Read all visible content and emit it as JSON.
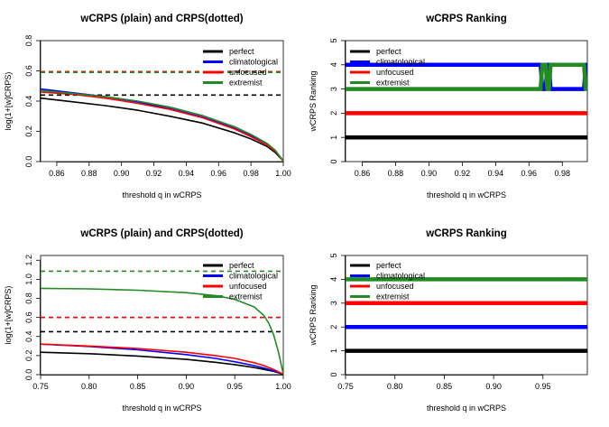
{
  "chart_data": [
    {
      "type": "line",
      "title": "wCRPS (plain) and CRPS(dotted)",
      "xlabel": "threshold q in wCRPS",
      "ylabel": "log(1+[w]CRPS)",
      "xlim": [
        0.85,
        1.0
      ],
      "ylim": [
        0,
        0.8
      ],
      "xticks": [
        "0.86",
        "0.88",
        "0.90",
        "0.92",
        "0.94",
        "0.96",
        "0.98",
        "1.00"
      ],
      "yticks": [
        "0.0",
        "0.2",
        "0.4",
        "0.6",
        "0.8"
      ],
      "legend": {
        "position": "top-right",
        "entries": [
          "perfect",
          "climatological",
          "unfocused",
          "extremist"
        ]
      },
      "series": [
        {
          "name": "perfect",
          "color": "#000000",
          "x": [
            0.85,
            0.87,
            0.89,
            0.91,
            0.93,
            0.95,
            0.97,
            0.98,
            0.99,
            0.995,
            1.0
          ],
          "y": [
            0.42,
            0.395,
            0.37,
            0.34,
            0.3,
            0.255,
            0.19,
            0.15,
            0.1,
            0.06,
            0.005
          ]
        },
        {
          "name": "climatological",
          "color": "#0000ff",
          "x": [
            0.85,
            0.87,
            0.89,
            0.91,
            0.93,
            0.95,
            0.97,
            0.98,
            0.99,
            0.995,
            1.0
          ],
          "y": [
            0.48,
            0.455,
            0.43,
            0.395,
            0.35,
            0.295,
            0.22,
            0.17,
            0.115,
            0.07,
            0.005
          ]
        },
        {
          "name": "unfocused",
          "color": "#ff0000",
          "x": [
            0.85,
            0.87,
            0.89,
            0.91,
            0.93,
            0.95,
            0.97,
            0.98,
            0.99,
            0.995,
            1.0
          ],
          "y": [
            0.46,
            0.445,
            0.42,
            0.385,
            0.345,
            0.29,
            0.215,
            0.165,
            0.11,
            0.07,
            0.005
          ]
        },
        {
          "name": "extremist",
          "color": "#228b22",
          "x": [
            0.85,
            0.87,
            0.89,
            0.91,
            0.93,
            0.95,
            0.97,
            0.98,
            0.99,
            0.995,
            1.0
          ],
          "y": [
            0.47,
            0.45,
            0.43,
            0.4,
            0.36,
            0.305,
            0.23,
            0.18,
            0.12,
            0.075,
            0.005
          ]
        }
      ],
      "dotted_series": [
        {
          "name": "perfect",
          "color": "#000000",
          "y": 0.44
        },
        {
          "name": "climatological",
          "color": "#0000ff",
          "y": 0.595
        },
        {
          "name": "unfocused",
          "color": "#ff0000",
          "y": 0.595
        },
        {
          "name": "extremist",
          "color": "#228b22",
          "y": 0.59
        }
      ]
    },
    {
      "type": "line",
      "title": "wCRPS Ranking",
      "xlabel": "threshold q in wCRPS",
      "ylabel": "wCRPS Ranking",
      "xlim": [
        0.85,
        0.995
      ],
      "ylim": [
        0,
        5
      ],
      "xticks": [
        "0.86",
        "0.88",
        "0.90",
        "0.92",
        "0.94",
        "0.96",
        "0.98"
      ],
      "yticks": [
        "0",
        "1",
        "2",
        "3",
        "4",
        "5"
      ],
      "legend": {
        "position": "top-left",
        "entries": [
          "perfect",
          "climatological",
          "unfocused",
          "extremist"
        ]
      },
      "series": [
        {
          "name": "perfect",
          "color": "#000000",
          "x": [
            0.85,
            0.995
          ],
          "y": [
            1,
            1
          ]
        },
        {
          "name": "unfocused",
          "color": "#ff0000",
          "x": [
            0.85,
            0.995
          ],
          "y": [
            2,
            2
          ]
        },
        {
          "name": "climatological",
          "color": "#0000ff",
          "x": [
            0.85,
            0.967,
            0.968,
            0.97,
            0.971,
            0.972,
            0.973,
            0.993,
            0.994,
            0.995
          ],
          "y": [
            4,
            4,
            3,
            3,
            4,
            4,
            3,
            3,
            4,
            4
          ]
        },
        {
          "name": "extremist",
          "color": "#228b22",
          "x": [
            0.85,
            0.967,
            0.968,
            0.97,
            0.971,
            0.972,
            0.973,
            0.993,
            0.994,
            0.995
          ],
          "y": [
            3,
            3,
            4,
            4,
            3,
            3,
            4,
            4,
            3,
            3
          ]
        }
      ]
    },
    {
      "type": "line",
      "title": "wCRPS (plain) and CRPS(dotted)",
      "xlabel": "threshold q in wCRPS",
      "ylabel": "log(1+[w]CRPS)",
      "xlim": [
        0.75,
        1.0
      ],
      "ylim": [
        0,
        1.25
      ],
      "xticks": [
        "0.75",
        "0.80",
        "0.85",
        "0.90",
        "0.95",
        "1.00"
      ],
      "yticks": [
        "0.0",
        "0.2",
        "0.4",
        "0.6",
        "0.8",
        "1.0",
        "1.2"
      ],
      "legend": {
        "position": "top-right",
        "entries": [
          "perfect",
          "climatological",
          "unfocused",
          "extremist"
        ]
      },
      "series": [
        {
          "name": "perfect",
          "color": "#000000",
          "x": [
            0.75,
            0.8,
            0.85,
            0.9,
            0.93,
            0.95,
            0.97,
            0.98,
            0.99,
            1.0
          ],
          "y": [
            0.235,
            0.22,
            0.195,
            0.16,
            0.13,
            0.105,
            0.075,
            0.055,
            0.035,
            0.005
          ]
        },
        {
          "name": "climatological",
          "color": "#0000ff",
          "x": [
            0.75,
            0.8,
            0.85,
            0.9,
            0.93,
            0.95,
            0.97,
            0.98,
            0.99,
            1.0
          ],
          "y": [
            0.32,
            0.295,
            0.26,
            0.21,
            0.17,
            0.135,
            0.095,
            0.07,
            0.04,
            0.005
          ]
        },
        {
          "name": "unfocused",
          "color": "#ff0000",
          "x": [
            0.75,
            0.8,
            0.85,
            0.9,
            0.93,
            0.95,
            0.97,
            0.98,
            0.99,
            1.0
          ],
          "y": [
            0.32,
            0.3,
            0.275,
            0.235,
            0.2,
            0.17,
            0.125,
            0.095,
            0.055,
            0.005
          ]
        },
        {
          "name": "extremist",
          "color": "#228b22",
          "x": [
            0.75,
            0.8,
            0.85,
            0.9,
            0.93,
            0.95,
            0.97,
            0.98,
            0.985,
            0.99,
            0.995,
            1.0
          ],
          "y": [
            0.905,
            0.9,
            0.885,
            0.86,
            0.83,
            0.79,
            0.71,
            0.62,
            0.54,
            0.42,
            0.24,
            0.005
          ]
        }
      ],
      "dotted_series": [
        {
          "name": "perfect",
          "color": "#000000",
          "y": 0.45
        },
        {
          "name": "climatological",
          "color": "#0000ff",
          "y": 0.6
        },
        {
          "name": "unfocused",
          "color": "#ff0000",
          "y": 0.6
        },
        {
          "name": "extremist",
          "color": "#228b22",
          "y": 1.085
        }
      ]
    },
    {
      "type": "line",
      "title": "wCRPS Ranking",
      "xlabel": "threshold q in wCRPS",
      "ylabel": "wCRPS Ranking",
      "xlim": [
        0.75,
        0.995
      ],
      "ylim": [
        0,
        5
      ],
      "xticks": [
        "0.75",
        "0.80",
        "0.85",
        "0.90",
        "0.95"
      ],
      "yticks": [
        "0",
        "1",
        "2",
        "3",
        "4",
        "5"
      ],
      "legend": {
        "position": "top-left",
        "entries": [
          "perfect",
          "climatological",
          "unfocused",
          "extremist"
        ]
      },
      "series": [
        {
          "name": "perfect",
          "color": "#000000",
          "x": [
            0.75,
            0.995
          ],
          "y": [
            1,
            1
          ]
        },
        {
          "name": "climatological",
          "color": "#0000ff",
          "x": [
            0.75,
            0.995
          ],
          "y": [
            2,
            2
          ]
        },
        {
          "name": "unfocused",
          "color": "#ff0000",
          "x": [
            0.75,
            0.995
          ],
          "y": [
            3,
            3
          ]
        },
        {
          "name": "extremist",
          "color": "#228b22",
          "x": [
            0.75,
            0.995
          ],
          "y": [
            4,
            4
          ]
        }
      ]
    }
  ]
}
